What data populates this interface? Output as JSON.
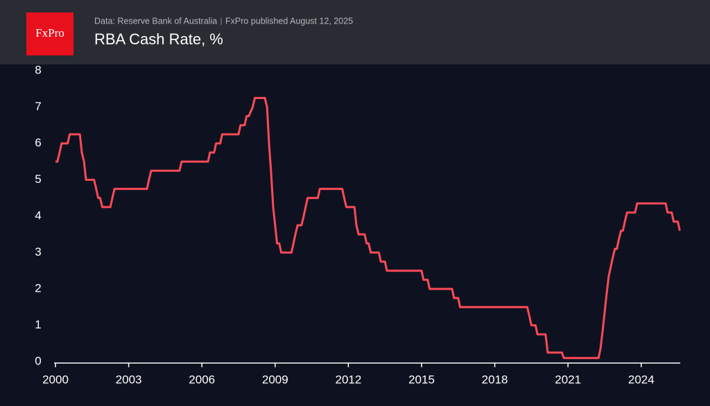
{
  "header": {
    "logo": "FxPro",
    "source": "Data: Reserve Bank of Australia",
    "published": "FxPro published August 12, 2025"
  },
  "chart_data": {
    "type": "line",
    "title": "RBA Cash Rate, %",
    "x": [
      2000.0,
      2000.08,
      2000.17,
      2000.25,
      2000.5,
      2000.58,
      2001.0,
      2001.08,
      2001.17,
      2001.25,
      2001.58,
      2001.67,
      2001.75,
      2001.83,
      2001.92,
      2002.25,
      2002.33,
      2002.42,
      2003.75,
      2003.83,
      2003.92,
      2005.08,
      2005.17,
      2006.25,
      2006.33,
      2006.5,
      2006.58,
      2006.75,
      2006.83,
      2007.5,
      2007.58,
      2007.75,
      2007.83,
      2007.92,
      2008.08,
      2008.17,
      2008.58,
      2008.67,
      2008.75,
      2008.83,
      2008.92,
      2009.08,
      2009.17,
      2009.25,
      2009.67,
      2009.75,
      2009.83,
      2009.92,
      2010.08,
      2010.17,
      2010.25,
      2010.33,
      2010.75,
      2010.83,
      2011.75,
      2011.83,
      2011.92,
      2012.25,
      2012.33,
      2012.42,
      2012.67,
      2012.75,
      2012.83,
      2012.92,
      2013.25,
      2013.33,
      2013.5,
      2013.58,
      2015.0,
      2015.08,
      2015.25,
      2015.33,
      2016.25,
      2016.33,
      2016.5,
      2016.58,
      2019.33,
      2019.42,
      2019.5,
      2019.67,
      2019.75,
      2020.08,
      2020.17,
      2020.75,
      2020.83,
      2022.25,
      2022.33,
      2022.42,
      2022.5,
      2022.58,
      2022.67,
      2022.75,
      2022.83,
      2022.92,
      2023.0,
      2023.08,
      2023.17,
      2023.25,
      2023.33,
      2023.42,
      2023.75,
      2023.83,
      2025.0,
      2025.08,
      2025.25,
      2025.33,
      2025.5,
      2025.58
    ],
    "series": [
      {
        "color": "#ff4a57",
        "values": [
          5.5,
          5.5,
          5.75,
          6,
          6,
          6.25,
          6.25,
          5.75,
          5.5,
          5,
          5,
          4.75,
          4.5,
          4.5,
          4.25,
          4.25,
          4.5,
          4.75,
          4.75,
          5,
          5.25,
          5.25,
          5.5,
          5.5,
          5.75,
          5.75,
          6,
          6,
          6.25,
          6.25,
          6.5,
          6.5,
          6.75,
          6.75,
          7,
          7.25,
          7.25,
          7,
          6,
          5.25,
          4.25,
          3.25,
          3.25,
          3,
          3,
          3.25,
          3.5,
          3.75,
          3.75,
          4,
          4.25,
          4.5,
          4.5,
          4.75,
          4.75,
          4.5,
          4.25,
          4.25,
          3.75,
          3.5,
          3.5,
          3.25,
          3.25,
          3,
          3,
          2.75,
          2.75,
          2.5,
          2.5,
          2.25,
          2.25,
          2,
          2,
          1.75,
          1.75,
          1.5,
          1.5,
          1.25,
          1,
          1,
          0.75,
          0.75,
          0.25,
          0.25,
          0.1,
          0.1,
          0.35,
          0.85,
          1.35,
          1.85,
          2.35,
          2.6,
          2.85,
          3.1,
          3.1,
          3.35,
          3.6,
          3.6,
          3.85,
          4.1,
          4.1,
          4.35,
          4.35,
          4.1,
          4.1,
          3.85,
          3.85,
          3.6
        ]
      }
    ],
    "xlim": [
      2000,
      2025.6
    ],
    "xticks": [
      2000,
      2003,
      2006,
      2009,
      2012,
      2015,
      2018,
      2021,
      2024
    ],
    "ylim": [
      0,
      8
    ],
    "yticks": [
      0,
      1,
      2,
      3,
      4,
      5,
      6,
      7,
      8
    ],
    "grid": false
  }
}
